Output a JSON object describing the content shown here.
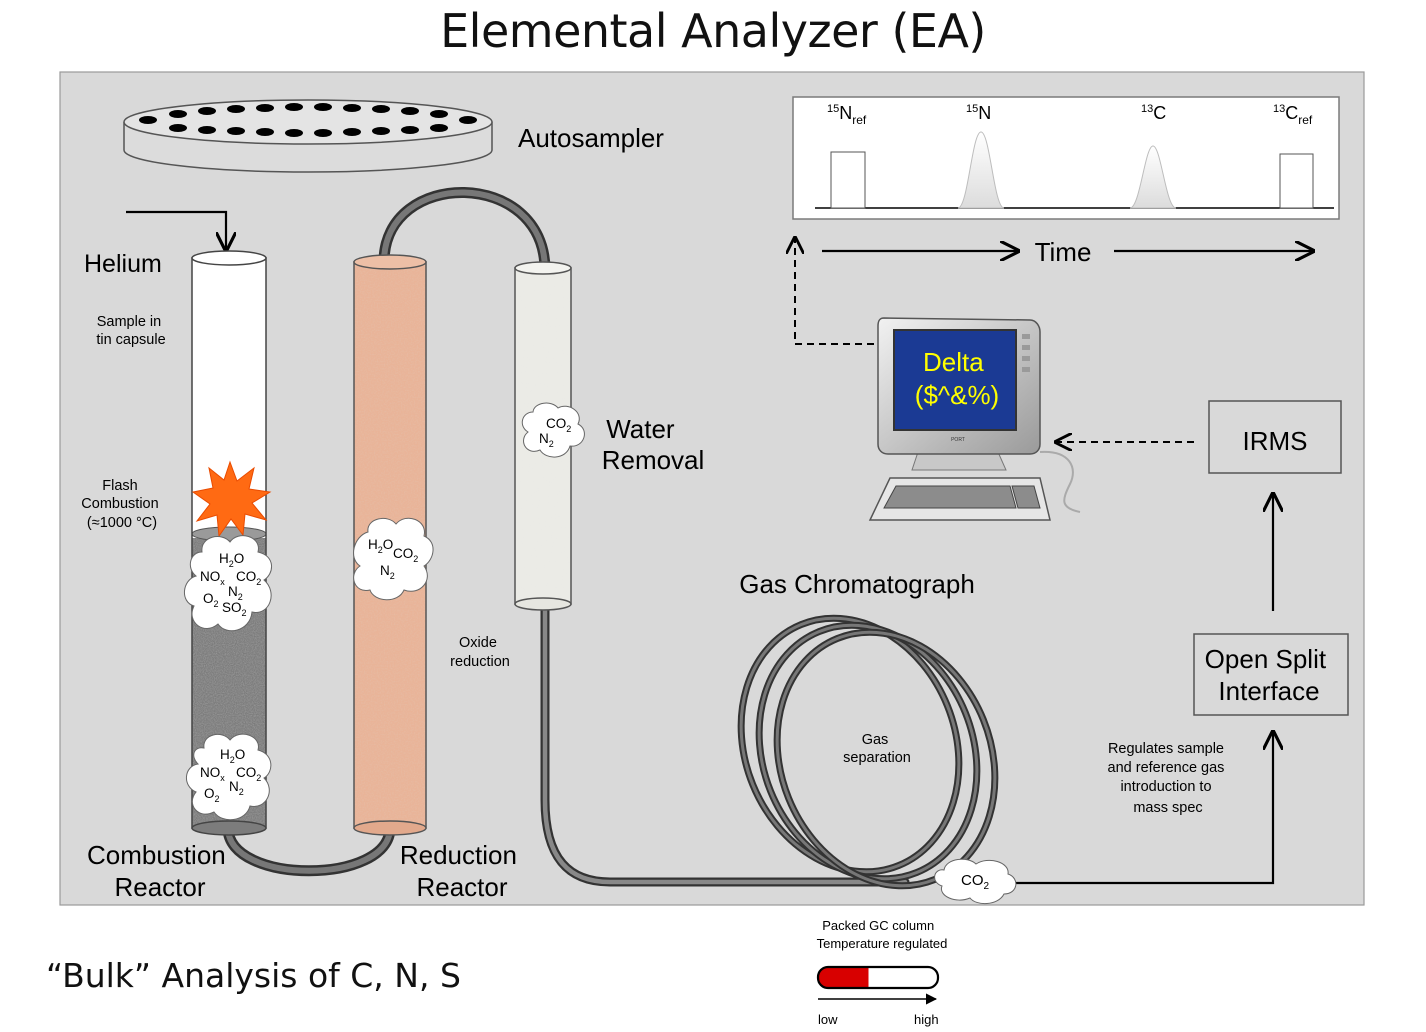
{
  "title": "Elemental Analyzer (EA)",
  "footer": "“Bulk” Analysis of C, N, S",
  "autosampler": {
    "label": "Autosampler"
  },
  "helium": {
    "label": "Helium"
  },
  "sample_note": {
    "line1": "Sample in",
    "line2": "tin capsule"
  },
  "flash": {
    "line1": "Flash",
    "line2": "Combustion",
    "line3": "(≈1000 °C)"
  },
  "combustion_reactor": {
    "line1": "Combustion",
    "line2": "Reactor"
  },
  "reduction_reactor": {
    "line1": "Reduction",
    "line2": "Reactor"
  },
  "oxide_reduction": {
    "line1": "Oxide",
    "line2": "reduction"
  },
  "water_removal": {
    "line1": "Water",
    "line2": "Removal"
  },
  "gas_chromatograph": {
    "label": "Gas Chromatograph"
  },
  "gas_separation": {
    "line1": "Gas",
    "line2": "separation"
  },
  "gc_legend": {
    "line1": "Packed GC column",
    "line2": "Temperature regulated",
    "low": "low",
    "high": "high"
  },
  "chromatogram": {
    "peaks": [
      {
        "base": "N",
        "sup": "15",
        "sub": "ref",
        "shape": "rectangle"
      },
      {
        "base": "N",
        "sup": "15",
        "sub": "",
        "shape": "gaussian"
      },
      {
        "base": "C",
        "sup": "13",
        "sub": "",
        "shape": "gaussian"
      },
      {
        "base": "C",
        "sup": "13",
        "sub": "ref",
        "shape": "rectangle"
      }
    ],
    "time_label": "Time"
  },
  "computer": {
    "screen_line1": "Delta",
    "screen_line2": "($^&%)",
    "brand": "PORT"
  },
  "irms": {
    "label": "IRMS"
  },
  "open_split": {
    "line1": "Open Split",
    "line2": "Interface"
  },
  "regulates_note": {
    "line1": "Regulates sample",
    "line2": "and reference gas",
    "line3": "introduction to",
    "line4": "mass spec"
  },
  "gas_clouds": {
    "combustion_upper": {
      "h2o": "H",
      "no": "NO",
      "co": "CO",
      "n": "N",
      "o": "O",
      "so": "SO"
    },
    "combustion_lower": {
      "h2o": "H",
      "no": "NO",
      "co": "CO",
      "n": "N",
      "o": "O"
    },
    "reduction": {
      "h2o": "H",
      "co": "CO",
      "n": "N"
    },
    "water": {
      "co": "CO",
      "n": "N"
    },
    "output": {
      "co": "CO"
    }
  },
  "colors": {
    "panel": "#d9d9d9",
    "reduction_tube": "#e9b498",
    "combustion_packing": "#7c7c7c",
    "water_tube": "#ebebe6",
    "screen": "#1b3a94",
    "screen_text": "#ffff00",
    "flash": "#ff6a13",
    "gc_low": "#d80000"
  }
}
